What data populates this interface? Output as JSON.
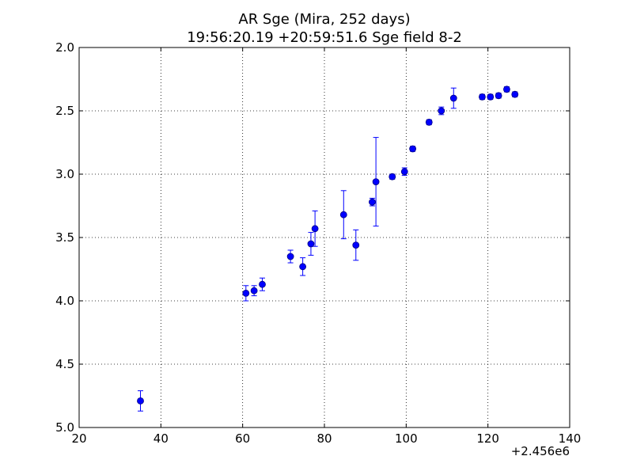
{
  "chart_data": {
    "type": "scatter",
    "title": "AR Sge (Mira, 252 days)",
    "subtitle": "19:56:20.19 +20:59:51.6 Sge field 8-2",
    "xlabel": "",
    "ylabel": "",
    "x_offset_label": "+2.456e6",
    "xlim": [
      20,
      140
    ],
    "ylim": [
      2.0,
      5.0
    ],
    "y_inverted": true,
    "x_ticks": [
      "20",
      "40",
      "60",
      "80",
      "100",
      "120",
      "140"
    ],
    "y_ticks": [
      "2.0",
      "2.5",
      "3.0",
      "3.5",
      "4.0",
      "4.5",
      "5.0"
    ],
    "grid": true,
    "marker_color": "#0000ff",
    "points": [
      {
        "x": 35.0,
        "y": 4.79,
        "err": 0.08
      },
      {
        "x": 60.8,
        "y": 3.94,
        "err": 0.06
      },
      {
        "x": 62.8,
        "y": 3.92,
        "err": 0.04
      },
      {
        "x": 64.8,
        "y": 3.87,
        "err": 0.05
      },
      {
        "x": 71.7,
        "y": 3.65,
        "err": 0.05
      },
      {
        "x": 74.7,
        "y": 3.73,
        "err": 0.07
      },
      {
        "x": 76.7,
        "y": 3.55,
        "err": 0.09
      },
      {
        "x": 77.7,
        "y": 3.43,
        "err": 0.14
      },
      {
        "x": 84.7,
        "y": 3.32,
        "err": 0.19
      },
      {
        "x": 87.7,
        "y": 3.56,
        "err": 0.12
      },
      {
        "x": 91.7,
        "y": 3.22,
        "err": 0.03
      },
      {
        "x": 92.6,
        "y": 3.06,
        "err": 0.35
      },
      {
        "x": 96.6,
        "y": 3.02,
        "err": 0.02
      },
      {
        "x": 99.6,
        "y": 2.98,
        "err": 0.03
      },
      {
        "x": 101.6,
        "y": 2.8,
        "err": 0.02
      },
      {
        "x": 105.6,
        "y": 2.59,
        "err": 0.02
      },
      {
        "x": 108.6,
        "y": 2.5,
        "err": 0.03
      },
      {
        "x": 111.6,
        "y": 2.4,
        "err": 0.08
      },
      {
        "x": 118.6,
        "y": 2.39,
        "err": 0.02
      },
      {
        "x": 120.6,
        "y": 2.39,
        "err": 0.02
      },
      {
        "x": 122.6,
        "y": 2.38,
        "err": 0.02
      },
      {
        "x": 124.6,
        "y": 2.33,
        "err": 0.02
      },
      {
        "x": 126.6,
        "y": 2.37,
        "err": 0.02
      }
    ]
  }
}
